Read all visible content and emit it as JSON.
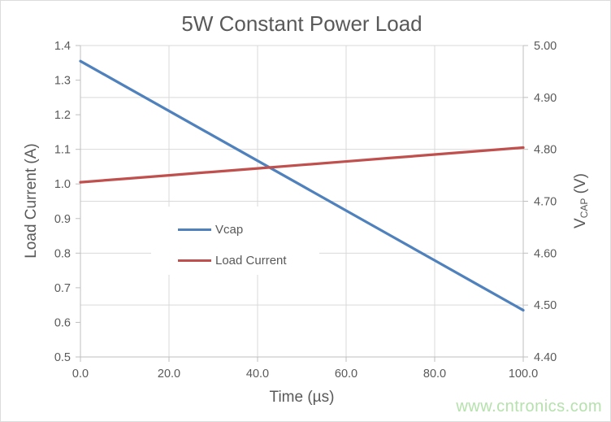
{
  "chart_data": {
    "type": "line",
    "title": "5W Constant Power Load",
    "xlabel": "Time (µs)",
    "ylabel_left": "Load Current (A)",
    "ylabel_right": {
      "main": "V",
      "sub": "CAP",
      "unit": " (V)"
    },
    "xlim": [
      0,
      100
    ],
    "ylim_left": [
      0.5,
      1.4
    ],
    "ylim_right": [
      4.4,
      5.0
    ],
    "x_tick_labels": [
      "0.0",
      "20.0",
      "40.0",
      "60.0",
      "80.0",
      "100.0"
    ],
    "y_left_tick_labels": [
      "1.4",
      "1.3",
      "1.2",
      "1.1",
      "1.0",
      "0.9",
      "0.8",
      "0.7",
      "0.6",
      "0.5"
    ],
    "y_right_tick_labels": [
      "5.00",
      "4.90",
      "4.80",
      "4.70",
      "4.60",
      "4.50",
      "4.40"
    ],
    "grid": true,
    "legend_position": "inside middle-left",
    "x": [
      0,
      10,
      20,
      30,
      40,
      50,
      60,
      70,
      80,
      90,
      100
    ],
    "series": [
      {
        "name": "Vcap",
        "axis": "right",
        "color": "#4f81bd",
        "values": [
          4.97,
          4.922,
          4.874,
          4.826,
          4.778,
          4.73,
          4.682,
          4.634,
          4.586,
          4.538,
          4.49
        ]
      },
      {
        "name": "Load Current",
        "axis": "left",
        "color": "#c0504d",
        "values": [
          1.005,
          1.015,
          1.025,
          1.035,
          1.045,
          1.055,
          1.065,
          1.075,
          1.085,
          1.095,
          1.105
        ]
      }
    ],
    "colors": {
      "text": "#595959",
      "axis_line": "#bfbfbf",
      "gridline": "#d9d9d9",
      "plot_background": "#ffffff"
    }
  },
  "watermark": {
    "text": "www.cntronics.com",
    "color": "#b5e2ac"
  }
}
